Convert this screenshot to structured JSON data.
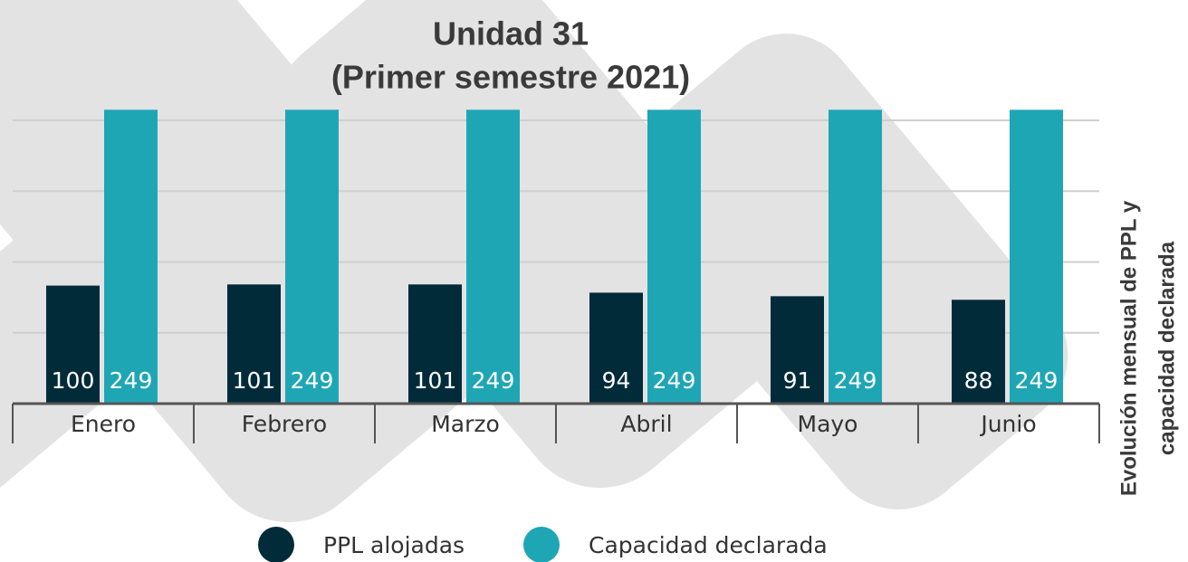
{
  "chart_data": {
    "type": "bar",
    "title": "Unidad 31",
    "subtitle": "(Primer semestre 2021)",
    "side_label": [
      "Evolución mensual de PPL y",
      "capacidad declarada"
    ],
    "categories": [
      "Enero",
      "Febrero",
      "Marzo",
      "Abril",
      "Mayo",
      "Junio"
    ],
    "series": [
      {
        "name": "PPL alojadas",
        "color": "#022b3a",
        "values": [
          100,
          101,
          101,
          94,
          91,
          88
        ]
      },
      {
        "name": "Capacidad declarada",
        "color": "#1fa6b5",
        "values": [
          249,
          249,
          249,
          249,
          249,
          249
        ]
      }
    ],
    "ylim": [
      0,
      250
    ],
    "yticks": [
      0,
      60,
      120,
      180,
      240
    ],
    "grid": true
  }
}
